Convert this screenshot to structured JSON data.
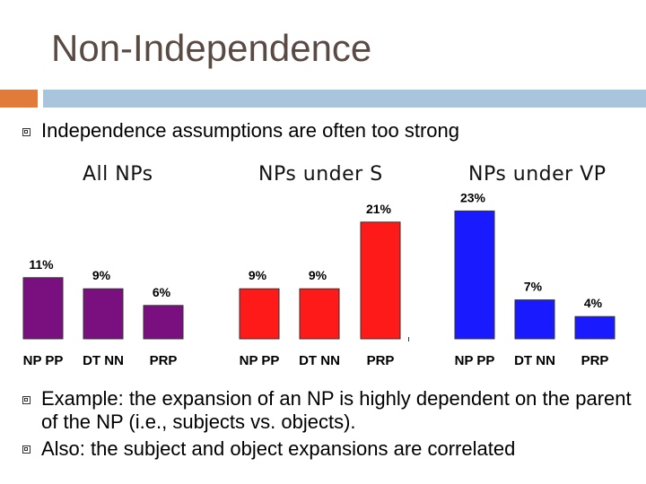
{
  "slide": {
    "title": "Non-Independence",
    "bullets": [
      "Independence assumptions are often too strong",
      "Example: the expansion of an NP is highly dependent on the parent of the NP (i.e., subjects vs. objects).",
      "Also: the subject and object expansions are correlated"
    ]
  },
  "colors": {
    "purple": "#7a0f7f",
    "red": "#ff1a1a",
    "blue": "#1a1aff",
    "title": "#5a4a44",
    "accent_orange": "#e07b39",
    "accent_blue": "#a9c4dd"
  },
  "chart_data": [
    {
      "type": "bar",
      "title": "All NPs",
      "categories": [
        "NP PP",
        "DT NN",
        "PRP"
      ],
      "values": [
        11,
        9,
        6
      ],
      "value_labels": [
        "11%",
        "9%",
        "6%"
      ],
      "color": "#7a0f7f"
    },
    {
      "type": "bar",
      "title": "NPs under S",
      "categories": [
        "NP PP",
        "DT NN",
        "PRP"
      ],
      "values": [
        9,
        9,
        21
      ],
      "value_labels": [
        "9%",
        "9%",
        "21%"
      ],
      "color": "#ff1a1a"
    },
    {
      "type": "bar",
      "title": "NPs under VP",
      "categories": [
        "NP PP",
        "DT NN",
        "PRP"
      ],
      "values": [
        23,
        7,
        4
      ],
      "value_labels": [
        "23%",
        "7%",
        "4%"
      ],
      "color": "#1a1aff"
    }
  ]
}
